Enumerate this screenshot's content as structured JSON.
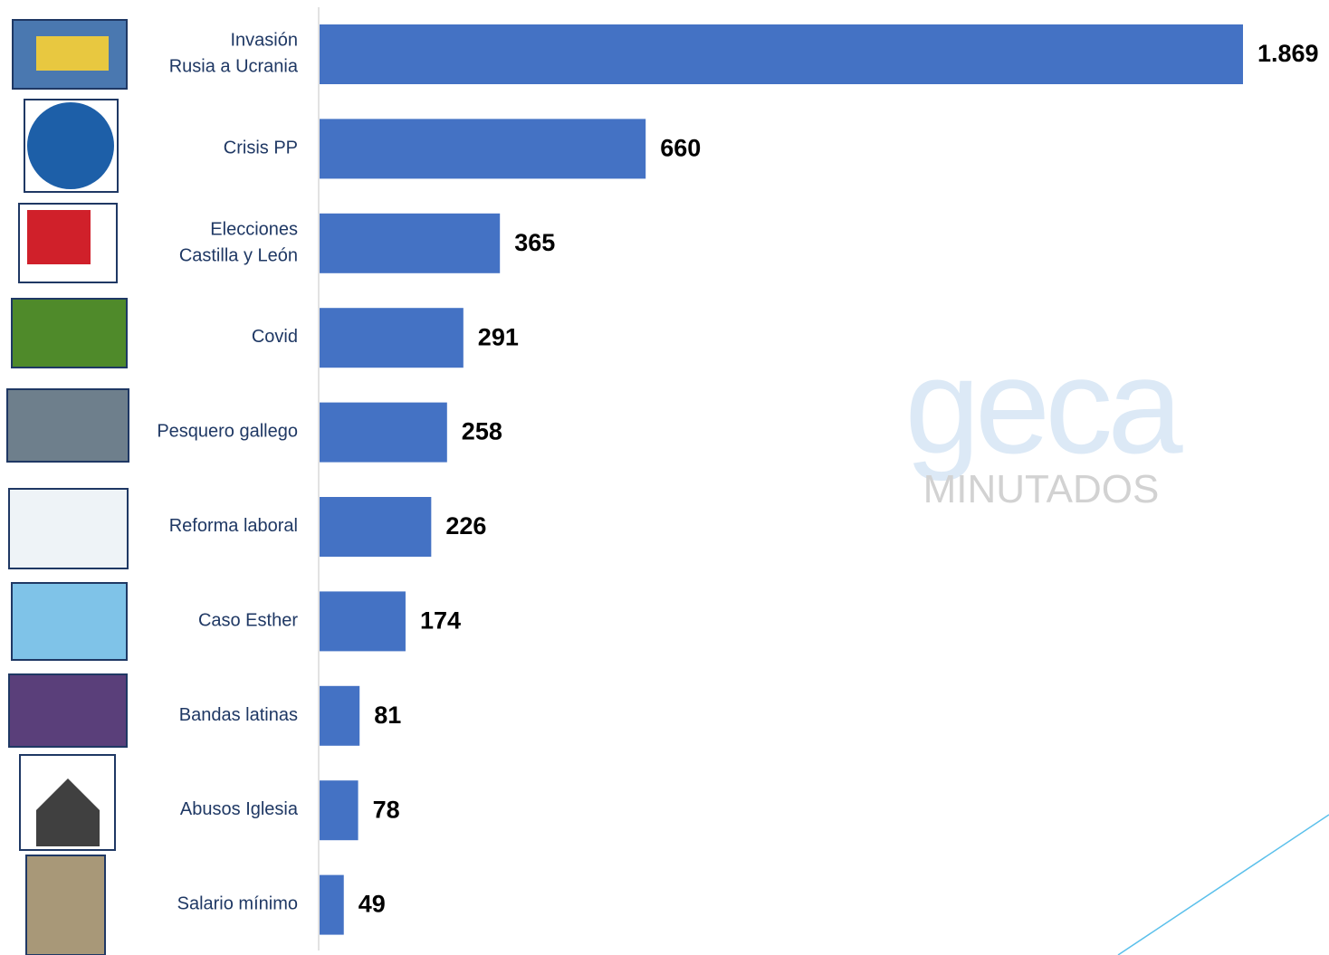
{
  "chart_data": {
    "type": "bar",
    "orientation": "horizontal",
    "categories": [
      "Invasión\nRusia a Ucrania",
      "Crisis PP",
      "Elecciones\nCastilla y León",
      "Covid",
      "Pesquero gallego",
      "Reforma laboral",
      "Caso Esther",
      "Bandas latinas",
      "Abusos Iglesia",
      "Salario mínimo"
    ],
    "values": [
      1869,
      660,
      365,
      291,
      258,
      226,
      174,
      81,
      78,
      49
    ],
    "value_labels": [
      "1.869",
      "660",
      "365",
      "291",
      "258",
      "226",
      "174",
      "81",
      "78",
      "49"
    ],
    "color": "#4472c4",
    "xlim": [
      0,
      1869
    ],
    "watermark": {
      "logo": "geca",
      "subtitle": "MINUTADOS"
    }
  }
}
